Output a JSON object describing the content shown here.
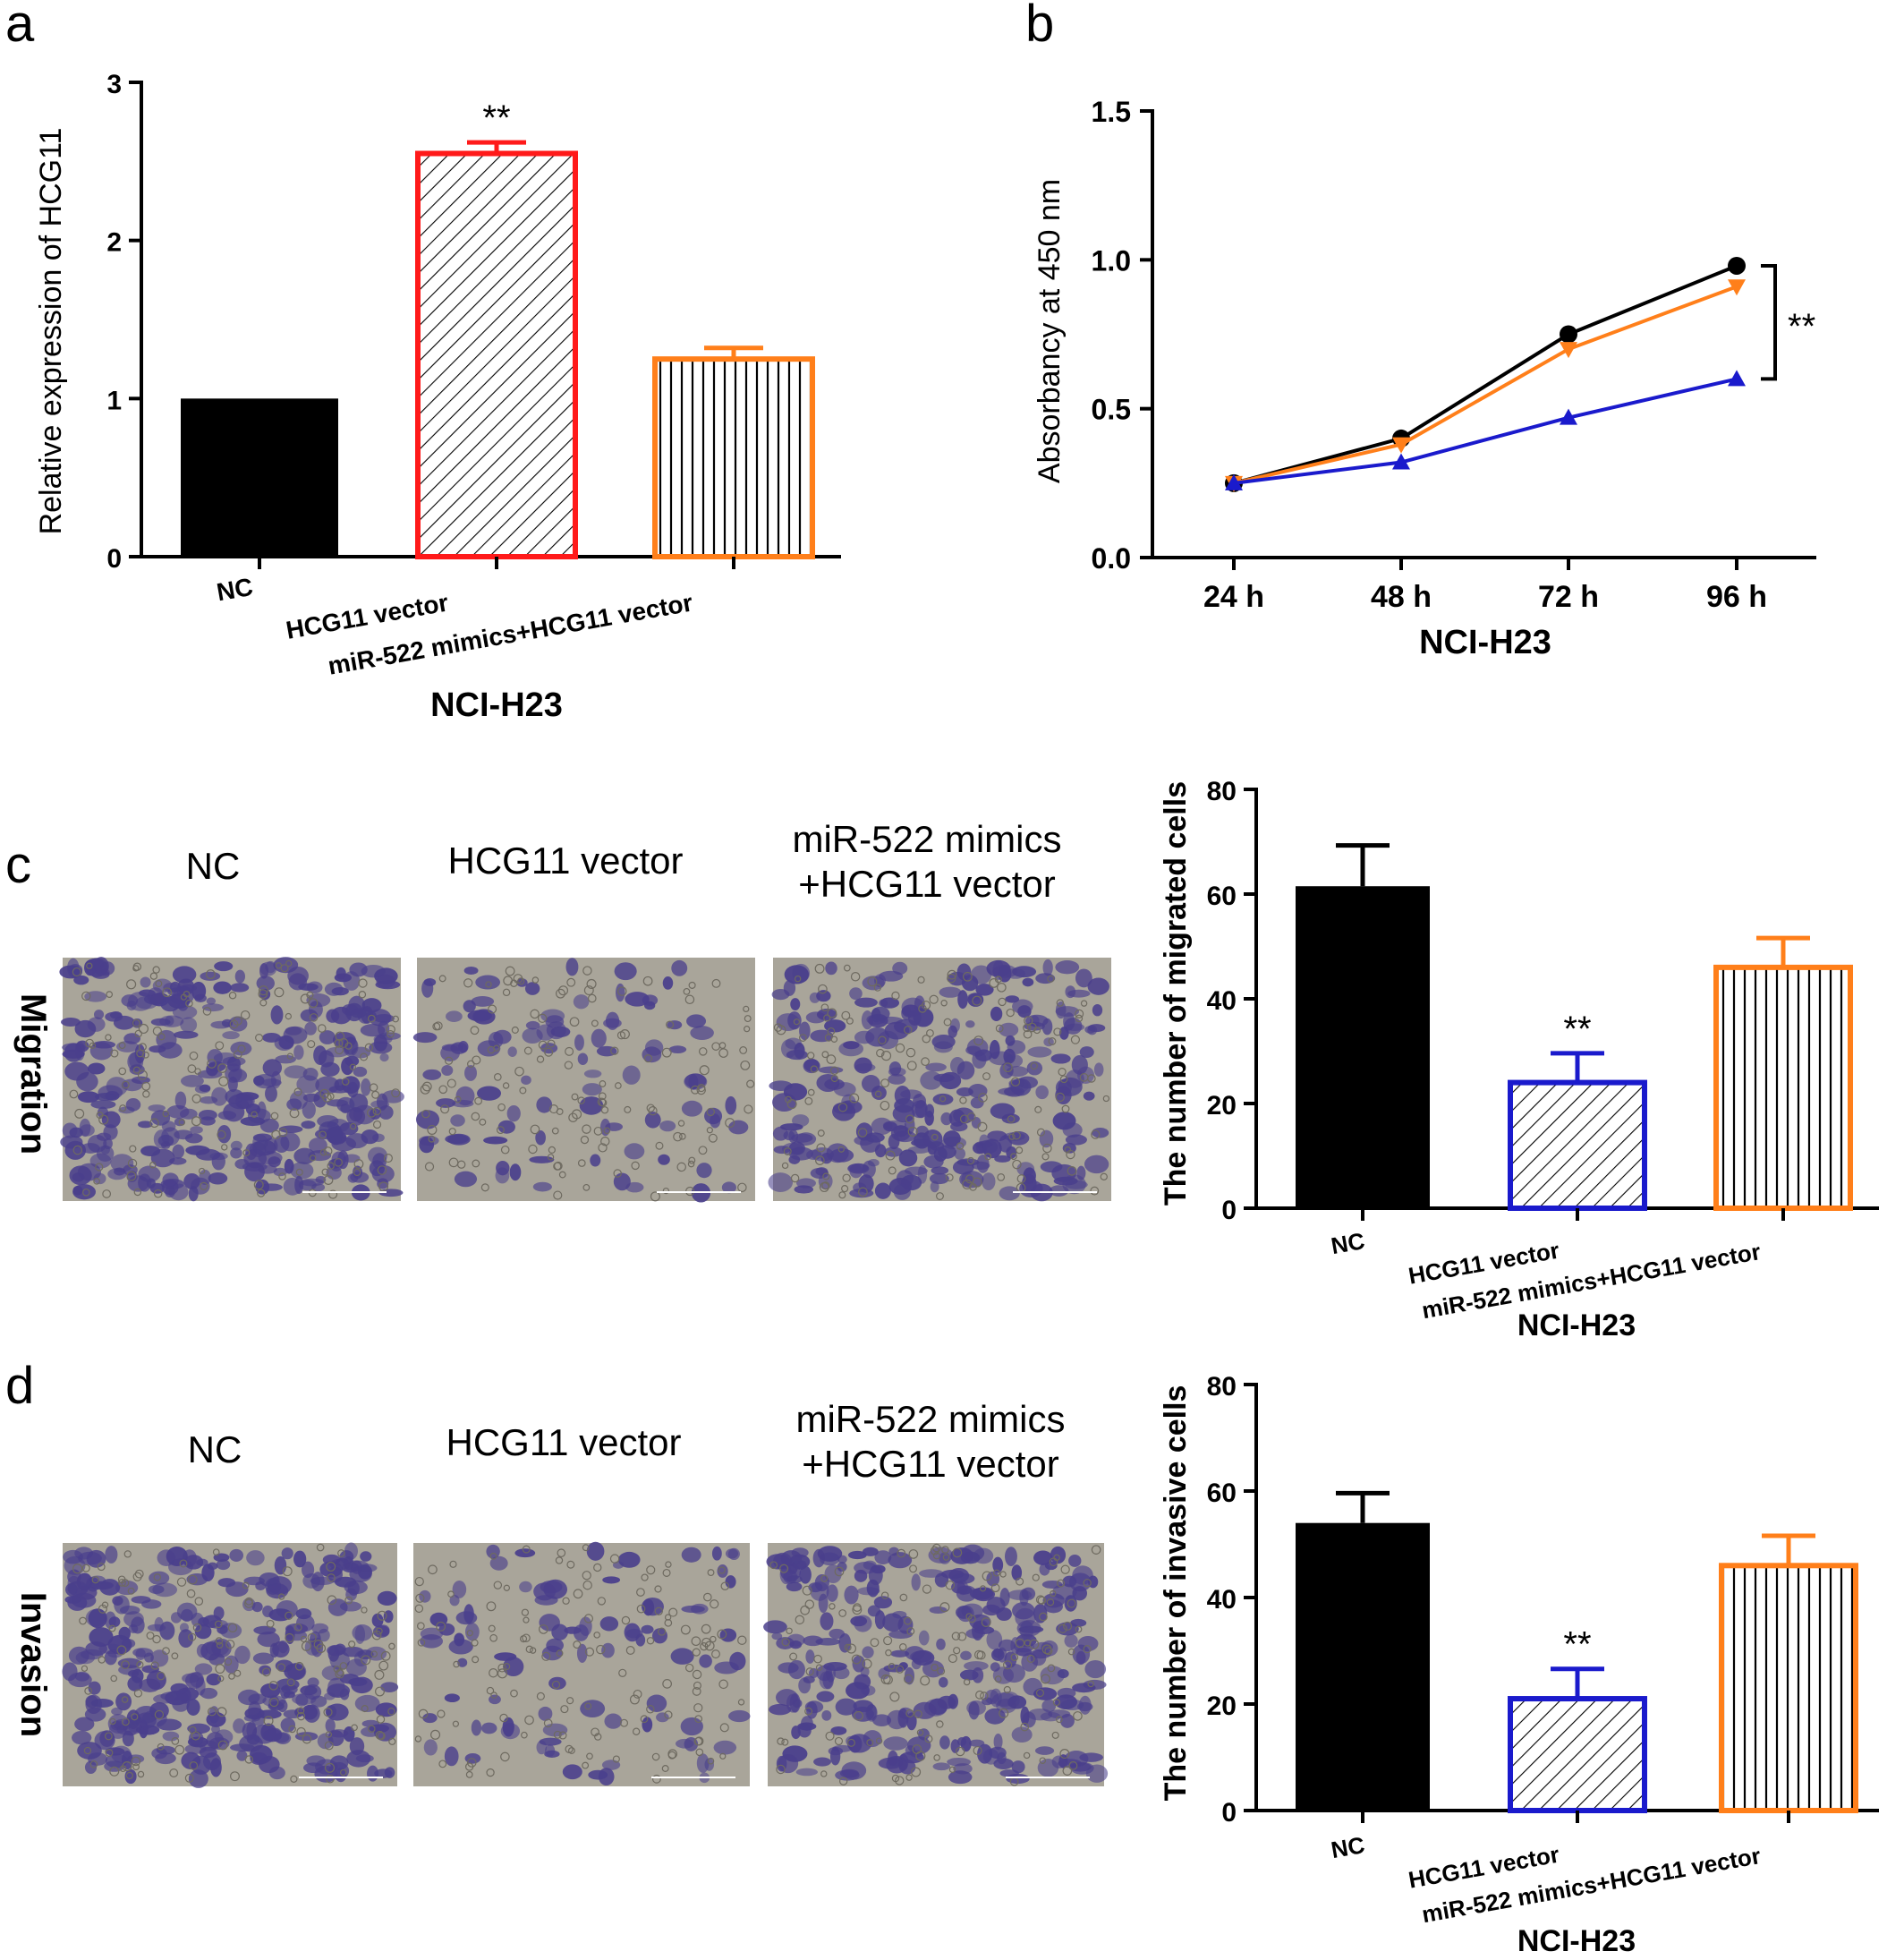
{
  "colors": {
    "black": "#000000",
    "red": "#ff1a1a",
    "orange": "#ff7f1a",
    "blue": "#1a1acc",
    "micrograph_bg": "#a9a59a",
    "stain": "#4a3f8c"
  },
  "panels": {
    "a": {
      "letter": "a",
      "xlabel": "NCI-H23",
      "ylabel": "Relative expression of HCG11",
      "yticks": [
        "0",
        "1",
        "2",
        "3"
      ],
      "categories": [
        "NC",
        "HCG11 vector",
        "miR-522 mimics+HCG11 vector"
      ],
      "sig": "**"
    },
    "b": {
      "letter": "b",
      "xlabel": "NCI-H23",
      "ylabel": "Absorbancy at 450 nm",
      "yticks": [
        "0.0",
        "0.5",
        "1.0",
        "1.5"
      ],
      "xticks": [
        "24 h",
        "48 h",
        "72 h",
        "96 h"
      ],
      "sig": "**"
    },
    "c": {
      "letter": "c",
      "row_label": "Migration",
      "image_titles": [
        "NC",
        "HCG11 vector",
        "miR-522 mimics",
        "+HCG11 vector"
      ],
      "xlabel": "NCI-H23",
      "ylabel": "The number of migrated cells",
      "yticks": [
        "0",
        "20",
        "40",
        "60",
        "80"
      ],
      "categories": [
        "NC",
        "HCG11 vector",
        "miR-522 mimics+HCG11 vector"
      ],
      "sig": "**"
    },
    "d": {
      "letter": "d",
      "row_label": "Invasion",
      "image_titles": [
        "NC",
        "HCG11 vector",
        "miR-522 mimics",
        "+HCG11 vector"
      ],
      "xlabel": "NCI-H23",
      "ylabel": "The number of invasive cells",
      "yticks": [
        "0",
        "20",
        "40",
        "60",
        "80"
      ],
      "categories": [
        "NC",
        "HCG11 vector",
        "miR-522 mimics+HCG11 vector"
      ],
      "sig": "**"
    }
  },
  "chart_data": [
    {
      "panel": "a",
      "type": "bar",
      "categories": [
        "NC",
        "HCG11 vector",
        "miR-522 mimics+HCG11 vector"
      ],
      "values": [
        1.0,
        2.55,
        1.25
      ],
      "errors": [
        0,
        0.07,
        0.07
      ],
      "ylim": [
        0,
        3
      ],
      "title": "",
      "xlabel": "NCI-H23",
      "ylabel": "Relative expression of HCG11",
      "annotations": [
        {
          "category": "HCG11 vector",
          "text": "**"
        }
      ]
    },
    {
      "panel": "b",
      "type": "line",
      "x": [
        "24 h",
        "48 h",
        "72 h",
        "96 h"
      ],
      "series": [
        {
          "values": [
            0.25,
            0.4,
            0.75,
            0.98
          ],
          "color": "#000000",
          "marker": "circle"
        },
        {
          "values": [
            0.25,
            0.38,
            0.7,
            0.91
          ],
          "color": "#ff7f1a",
          "marker": "triangle-down"
        },
        {
          "values": [
            0.25,
            0.32,
            0.47,
            0.6
          ],
          "color": "#1a1acc",
          "marker": "triangle-up"
        }
      ],
      "ylim": [
        0,
        1.5
      ],
      "title": "",
      "xlabel": "NCI-H23",
      "ylabel": "Absorbancy at 450 nm",
      "annotations": [
        {
          "text": "**",
          "between": [
            0.98,
            0.6
          ]
        }
      ]
    },
    {
      "panel": "c",
      "type": "bar",
      "categories": [
        "NC",
        "HCG11 vector",
        "miR-522 mimics+HCG11 vector"
      ],
      "values": [
        61.5,
        24,
        46
      ],
      "errors": [
        7.8,
        5.6,
        5.6
      ],
      "ylim": [
        0,
        80
      ],
      "title": "",
      "xlabel": "NCI-H23",
      "ylabel": "The number of migrated cells",
      "annotations": [
        {
          "category": "HCG11 vector",
          "text": "**"
        }
      ]
    },
    {
      "panel": "d",
      "type": "bar",
      "categories": [
        "NC",
        "HCG11 vector",
        "miR-522 mimics+HCG11 vector"
      ],
      "values": [
        54,
        21,
        46
      ],
      "errors": [
        5.6,
        5.6,
        5.6
      ],
      "ylim": [
        0,
        80
      ],
      "title": "",
      "xlabel": "NCI-H23",
      "ylabel": "The number of invasive cells",
      "annotations": [
        {
          "category": "HCG11 vector",
          "text": "**"
        }
      ]
    }
  ]
}
